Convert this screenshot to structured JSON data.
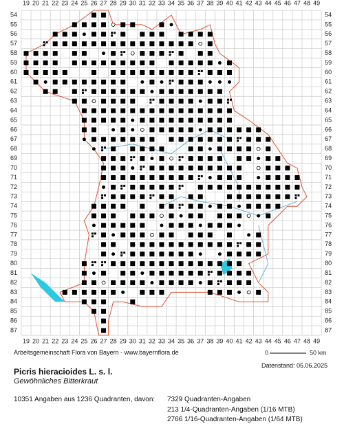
{
  "grid": {
    "columns": [
      19,
      20,
      21,
      22,
      23,
      24,
      25,
      26,
      27,
      28,
      29,
      30,
      31,
      32,
      33,
      34,
      35,
      36,
      37,
      38,
      39,
      40,
      41,
      42,
      43,
      44,
      45,
      46,
      47,
      48,
      49
    ],
    "rows": [
      54,
      55,
      56,
      57,
      58,
      59,
      60,
      61,
      62,
      63,
      64,
      65,
      66,
      67,
      68,
      69,
      70,
      71,
      72,
      73,
      74,
      75,
      76,
      77,
      78,
      79,
      80,
      81,
      82,
      83,
      84,
      85,
      86,
      87
    ]
  },
  "scale": {
    "start": "0",
    "end": "50 km"
  },
  "footer": {
    "credit": "Arbeitsgemeinschaft Flora von Bayern - www.bayernflora.de",
    "date": "Datenstand: 05.06.2025"
  },
  "species": {
    "name": "Picris hieracioides L. s. l.",
    "common": "Gewöhnliches Bitterkraut"
  },
  "stats": {
    "summary": "10351 Angaben aus 1236 Quadranten, davon:",
    "lines": [
      "7329 Quadranten-Angaben",
      "213 1/4-Quadranten-Angaben (1/16 MTB)",
      "2766 1/16-Quadranten-Angaben (1/64 MTB)"
    ]
  }
}
